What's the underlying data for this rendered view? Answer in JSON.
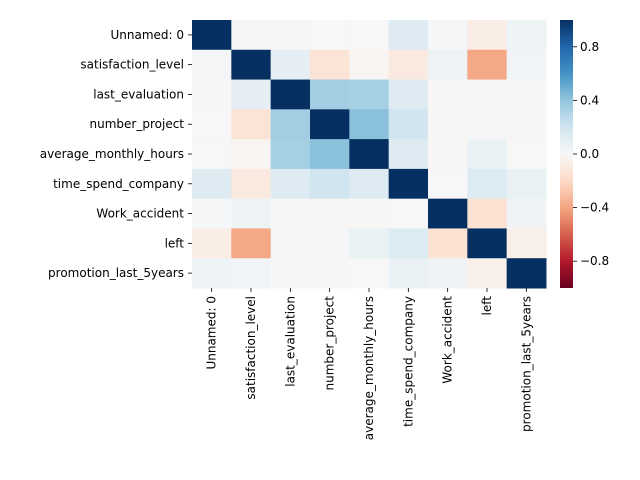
{
  "chart_data": {
    "type": "heatmap",
    "title": "",
    "xlabel": "",
    "ylabel": "",
    "labels": [
      "Unnamed: 0",
      "satisfaction_level",
      "last_evaluation",
      "number_project",
      "average_monthly_hours",
      "time_spend_company",
      "Work_accident",
      "left",
      "promotion_last_5years"
    ],
    "matrix": [
      [
        1.0,
        0.02,
        -0.01,
        0.0,
        0.0,
        0.13,
        0.01,
        -0.07,
        0.05
      ],
      [
        0.02,
        1.0,
        0.1,
        -0.14,
        -0.02,
        -0.1,
        0.06,
        -0.39,
        0.03
      ],
      [
        -0.01,
        0.1,
        1.0,
        0.35,
        0.34,
        0.13,
        -0.01,
        0.01,
        -0.01
      ],
      [
        0.0,
        -0.14,
        0.35,
        1.0,
        0.42,
        0.2,
        -0.01,
        0.02,
        -0.01
      ],
      [
        0.0,
        -0.02,
        0.34,
        0.42,
        1.0,
        0.13,
        -0.01,
        0.07,
        0.0
      ],
      [
        0.13,
        -0.1,
        0.13,
        0.2,
        0.13,
        1.0,
        0.0,
        0.14,
        0.07
      ],
      [
        0.01,
        0.06,
        -0.01,
        -0.01,
        -0.01,
        0.0,
        1.0,
        -0.15,
        0.04
      ],
      [
        -0.07,
        -0.39,
        0.01,
        0.02,
        0.07,
        0.14,
        -0.15,
        1.0,
        -0.06
      ],
      [
        0.05,
        0.03,
        -0.01,
        -0.01,
        0.0,
        0.07,
        0.04,
        -0.06,
        1.0
      ]
    ],
    "colorbar": {
      "colormap": "RdBu",
      "vmin": -1.0,
      "vmax": 1.0,
      "ticks": [
        0.8,
        0.4,
        0.0,
        -0.4,
        -0.8
      ],
      "tick_labels": [
        "0.8",
        "0.4",
        "0.0",
        "−0.4",
        "−0.8"
      ]
    },
    "grid": false,
    "legend": "none"
  }
}
